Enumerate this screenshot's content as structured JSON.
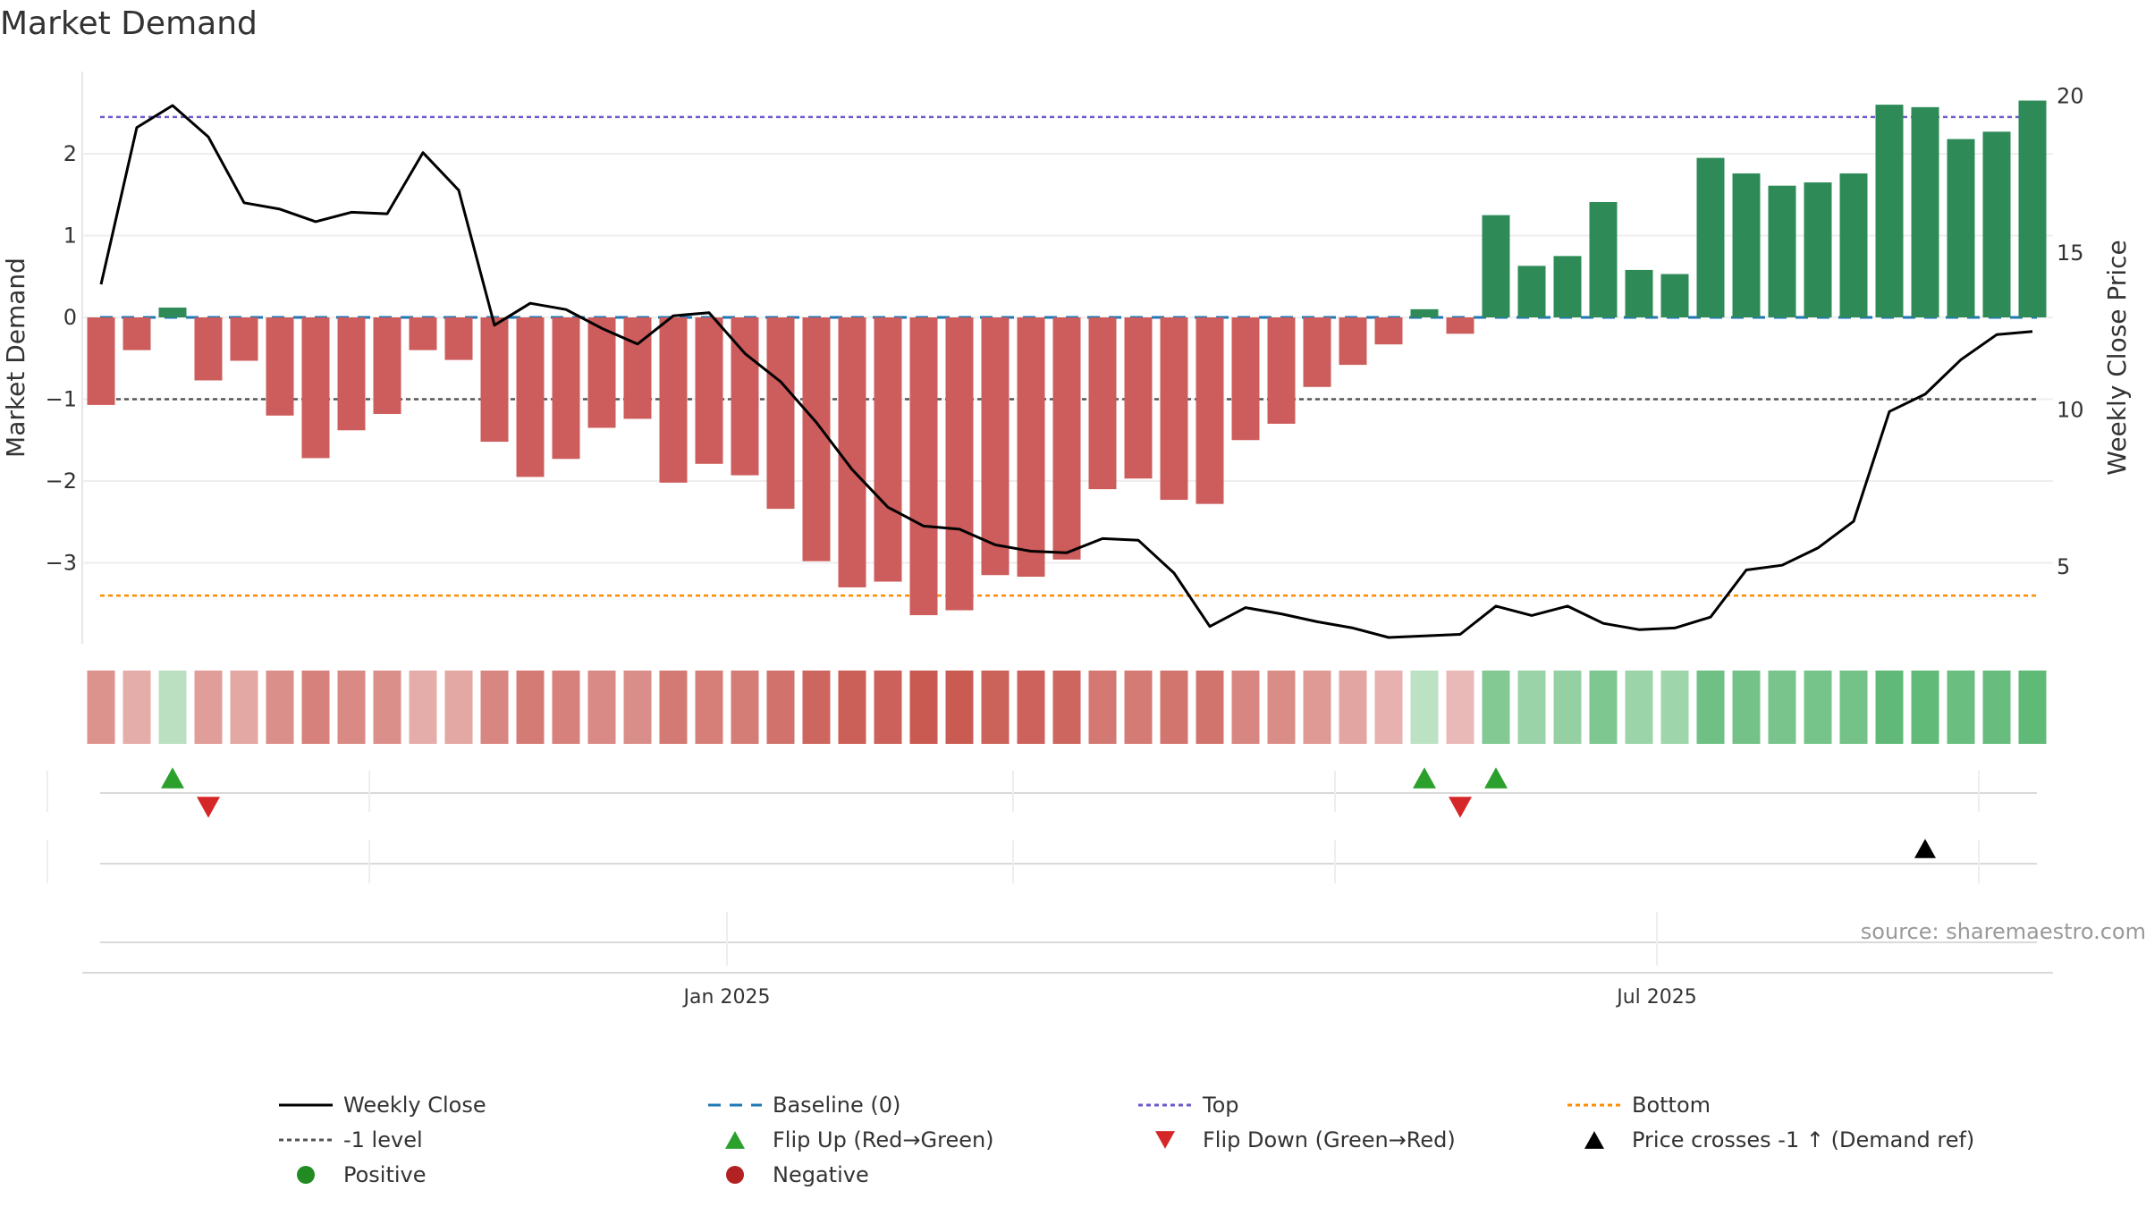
{
  "chart_data": {
    "type": "bar",
    "title": "Market Demand",
    "ylabel_left": "Market Demand",
    "ylabel_right": "Weekly Close Price",
    "source": "source: sharemaestro.com",
    "x_ticks": [
      "Jan 2025",
      "Jul 2025"
    ],
    "y_left_ticks": [
      "2",
      "1",
      "0",
      "−1",
      "−2",
      "−3"
    ],
    "y_left_tick_values": [
      2,
      1,
      0,
      -1,
      -2,
      -3
    ],
    "y_right_ticks": [
      "20",
      "15",
      "10",
      "5"
    ],
    "y_right_tick_values": [
      20,
      15,
      10,
      5
    ],
    "ylim_left": [
      -3.95,
      3.0
    ],
    "ylim_right": [
      2.0,
      20.2
    ],
    "reference_lines": {
      "top": 2.45,
      "bottom": -3.4,
      "minus_one": -1,
      "baseline": 0
    },
    "demand": [
      -1.07,
      -0.4,
      0.12,
      -0.77,
      -0.53,
      -1.2,
      -1.72,
      -1.38,
      -1.18,
      -0.4,
      -0.52,
      -1.52,
      -1.95,
      -1.73,
      -1.35,
      -1.24,
      -2.02,
      -1.79,
      -1.93,
      -2.34,
      -2.98,
      -3.3,
      -3.23,
      -3.64,
      -3.58,
      -3.15,
      -3.17,
      -2.96,
      -2.1,
      -1.97,
      -2.23,
      -2.28,
      -1.5,
      -1.3,
      -0.85,
      -0.58,
      -0.33,
      0.1,
      -0.2,
      1.25,
      0.63,
      0.75,
      1.41,
      0.58,
      0.53,
      1.95,
      1.76,
      1.61,
      1.65,
      1.76,
      2.6,
      2.57,
      2.18,
      2.27,
      2.65
    ],
    "close": [
      14.0,
      19.0,
      19.7,
      18.7,
      16.6,
      16.4,
      16.0,
      16.3,
      16.25,
      18.2,
      17.0,
      12.7,
      13.4,
      13.2,
      12.6,
      12.1,
      13.0,
      13.1,
      11.8,
      10.9,
      9.6,
      8.1,
      6.9,
      6.3,
      6.2,
      5.7,
      5.5,
      5.45,
      5.9,
      5.85,
      4.8,
      3.1,
      3.7,
      3.5,
      3.25,
      3.05,
      2.75,
      2.8,
      2.85,
      3.75,
      3.45,
      3.75,
      3.2,
      3.0,
      3.05,
      3.4,
      4.9,
      5.05,
      5.6,
      6.45,
      9.95,
      10.5,
      11.6,
      12.4,
      12.5
    ],
    "flip_up_indices": [
      2,
      37,
      39
    ],
    "flip_down_indices": [
      3,
      38
    ],
    "price_cross_indices": [
      51
    ],
    "legend": [
      "Weekly Close",
      "Baseline (0)",
      "Top",
      "Bottom",
      "-1 level",
      "Flip Up (Red→Green)",
      "Flip Down (Green→Red)",
      "Price crosses -1 ↑ (Demand ref)",
      "Positive",
      "Negative"
    ],
    "colors": {
      "positive_bar": "#2e8b57",
      "negative_bar": "#cd5c5c",
      "close_line": "#000000",
      "baseline": "#1f77b4",
      "top": "#6a5acd",
      "bottom": "#ff8c00",
      "minus_one": "#555555",
      "flip_up": "#2ca02c",
      "flip_down": "#d62728",
      "price_cross": "#000000",
      "legend_positive": "#228b22",
      "legend_negative": "#b22222"
    }
  }
}
